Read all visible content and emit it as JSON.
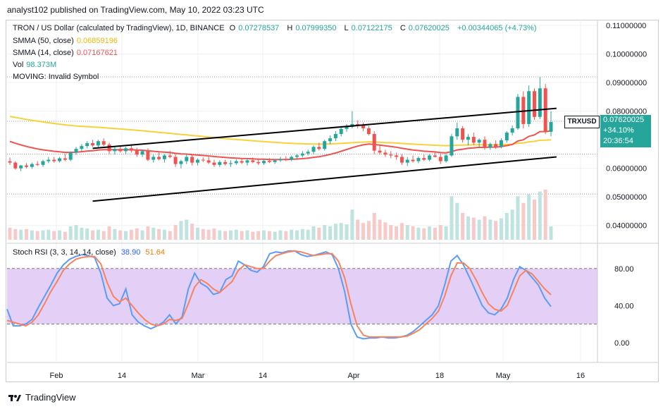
{
  "header": {
    "published": "analyst102 published on TradingView.com, May 10, 2022 03:23 UTC"
  },
  "legend": {
    "symbol": "TRON / US Dollar (calculated by TradingView), 1D, BINANCE",
    "open_label": "O",
    "open": "0.07278537",
    "high_label": "H",
    "high": "0.07999350",
    "low_label": "L",
    "low": "0.07122175",
    "close_label": "C",
    "close": "0.07620025",
    "change": "+0.00344065 (+4.73%)",
    "smma50_label": "SMMA (50, close)",
    "smma50": "0.06859196",
    "smma14_label": "SMMA (14, close)",
    "smma14": "0.07167621",
    "vol_label": "Vol",
    "vol": "98.373M",
    "moving_label": "MOVING: Invalid Symbol"
  },
  "price_tag": {
    "symbol": "TRXUSD",
    "price": "0.07620025",
    "pct": "+34.10%",
    "countdown": "20:36:54"
  },
  "stoch_legend": {
    "label": "Stoch RSI (3, 3, 14, 14, close)",
    "k": "38.90",
    "d": "51.64"
  },
  "footer": {
    "brand": "TradingView"
  },
  "colors": {
    "up": "#26a69a",
    "down": "#ef5350",
    "smma50": "#f7d23a",
    "smma14": "#ef5350",
    "stoch_k": "#5b9cf6",
    "stoch_d": "#f7825e",
    "stoch_band": "#e4d0f7"
  },
  "chart_data": [
    {
      "type": "candlestick",
      "title": "TRON / US Dollar (calculated by TradingView), 1D, BINANCE",
      "x_ticks": [
        "Feb",
        "14",
        "Mar",
        "14",
        "Apr",
        "18",
        "May",
        "16"
      ],
      "y_ticks": [
        "0.11000000",
        "0.10000000",
        "0.09000000",
        "0.08000000",
        "0.06000000",
        "0.05000000",
        "0.04000000"
      ],
      "ylim": [
        0.035,
        0.112
      ],
      "candles": [
        [
          0.0625,
          0.0638,
          0.0612,
          0.062
        ],
        [
          0.062,
          0.0625,
          0.0595,
          0.06
        ],
        [
          0.06,
          0.0612,
          0.059,
          0.061
        ],
        [
          0.061,
          0.0618,
          0.06,
          0.0605
        ],
        [
          0.0605,
          0.062,
          0.0598,
          0.0615
        ],
        [
          0.0615,
          0.0625,
          0.0608,
          0.0612
        ],
        [
          0.0612,
          0.063,
          0.0605,
          0.0625
        ],
        [
          0.0625,
          0.064,
          0.0618,
          0.063
        ],
        [
          0.063,
          0.064,
          0.062,
          0.0625
        ],
        [
          0.0625,
          0.064,
          0.062,
          0.0635
        ],
        [
          0.0635,
          0.065,
          0.0625,
          0.063
        ],
        [
          0.063,
          0.066,
          0.0625,
          0.0655
        ],
        [
          0.0655,
          0.0675,
          0.0648,
          0.0668
        ],
        [
          0.0668,
          0.0685,
          0.066,
          0.0678
        ],
        [
          0.0678,
          0.0695,
          0.067,
          0.0688
        ],
        [
          0.0688,
          0.07,
          0.0675,
          0.068
        ],
        [
          0.068,
          0.07,
          0.067,
          0.0695
        ],
        [
          0.0695,
          0.0705,
          0.0678,
          0.0683
        ],
        [
          0.0683,
          0.069,
          0.065,
          0.066
        ],
        [
          0.066,
          0.0675,
          0.0648,
          0.0668
        ],
        [
          0.0668,
          0.068,
          0.0655,
          0.066
        ],
        [
          0.066,
          0.0675,
          0.065,
          0.067
        ],
        [
          0.067,
          0.0685,
          0.0655,
          0.0662
        ],
        [
          0.0662,
          0.0672,
          0.064,
          0.0648
        ],
        [
          0.0648,
          0.0665,
          0.064,
          0.066
        ],
        [
          0.066,
          0.067,
          0.0625,
          0.063
        ],
        [
          0.063,
          0.0648,
          0.062,
          0.064
        ],
        [
          0.064,
          0.0655,
          0.0628,
          0.0632
        ],
        [
          0.0632,
          0.065,
          0.062,
          0.0645
        ],
        [
          0.0645,
          0.066,
          0.0635,
          0.064
        ],
        [
          0.064,
          0.065,
          0.0605,
          0.0615
        ],
        [
          0.0615,
          0.063,
          0.06,
          0.0625
        ],
        [
          0.0625,
          0.065,
          0.0615,
          0.064
        ],
        [
          0.064,
          0.0648,
          0.061,
          0.062
        ],
        [
          0.062,
          0.0635,
          0.061,
          0.063
        ],
        [
          0.063,
          0.0638,
          0.0622,
          0.0628
        ],
        [
          0.0628,
          0.064,
          0.0615,
          0.062
        ],
        [
          0.062,
          0.063,
          0.0605,
          0.0612
        ],
        [
          0.0612,
          0.0628,
          0.0605,
          0.0622
        ],
        [
          0.0622,
          0.063,
          0.061,
          0.0615
        ],
        [
          0.0615,
          0.0628,
          0.0605,
          0.0618
        ],
        [
          0.0618,
          0.0632,
          0.0612,
          0.0625
        ],
        [
          0.0625,
          0.0635,
          0.0615,
          0.062
        ],
        [
          0.062,
          0.0635,
          0.061,
          0.0628
        ],
        [
          0.0628,
          0.0638,
          0.0618,
          0.0622
        ],
        [
          0.0622,
          0.063,
          0.0612,
          0.0618
        ],
        [
          0.0618,
          0.0632,
          0.0612,
          0.0626
        ],
        [
          0.0626,
          0.0636,
          0.0618,
          0.0622
        ],
        [
          0.0622,
          0.063,
          0.0615,
          0.0628
        ],
        [
          0.0628,
          0.064,
          0.0622,
          0.0632
        ],
        [
          0.0632,
          0.0642,
          0.0625,
          0.063
        ],
        [
          0.063,
          0.0645,
          0.0625,
          0.064
        ],
        [
          0.064,
          0.065,
          0.0632,
          0.0645
        ],
        [
          0.0645,
          0.066,
          0.0638,
          0.0652
        ],
        [
          0.0652,
          0.0665,
          0.0645,
          0.0658
        ],
        [
          0.0658,
          0.068,
          0.065,
          0.0675
        ],
        [
          0.0675,
          0.069,
          0.0662,
          0.0668
        ],
        [
          0.0668,
          0.07,
          0.0662,
          0.0695
        ],
        [
          0.0695,
          0.0715,
          0.0685,
          0.0705
        ],
        [
          0.0705,
          0.073,
          0.0695,
          0.072
        ],
        [
          0.072,
          0.0748,
          0.0712,
          0.0738
        ],
        [
          0.0738,
          0.0755,
          0.0728,
          0.0745
        ],
        [
          0.0745,
          0.08,
          0.074,
          0.0755
        ],
        [
          0.0755,
          0.0768,
          0.074,
          0.075
        ],
        [
          0.075,
          0.076,
          0.073,
          0.074
        ],
        [
          0.074,
          0.0748,
          0.0715,
          0.072
        ],
        [
          0.072,
          0.073,
          0.065,
          0.0662
        ],
        [
          0.0662,
          0.068,
          0.0648,
          0.0655
        ],
        [
          0.0655,
          0.0665,
          0.064,
          0.0648
        ],
        [
          0.0648,
          0.066,
          0.0635,
          0.0645
        ],
        [
          0.0645,
          0.0655,
          0.063,
          0.064
        ],
        [
          0.064,
          0.065,
          0.0612,
          0.062
        ],
        [
          0.062,
          0.064,
          0.0608,
          0.063
        ],
        [
          0.063,
          0.0645,
          0.062,
          0.0625
        ],
        [
          0.0625,
          0.0642,
          0.0618,
          0.0636
        ],
        [
          0.0636,
          0.0648,
          0.0625,
          0.063
        ],
        [
          0.063,
          0.065,
          0.0625,
          0.0645
        ],
        [
          0.0645,
          0.066,
          0.0638,
          0.064
        ],
        [
          0.064,
          0.0652,
          0.0615,
          0.0625
        ],
        [
          0.0625,
          0.065,
          0.062,
          0.0645
        ],
        [
          0.0645,
          0.072,
          0.064,
          0.0712
        ],
        [
          0.0712,
          0.076,
          0.07,
          0.074
        ],
        [
          0.074,
          0.0748,
          0.069,
          0.07
        ],
        [
          0.07,
          0.072,
          0.068,
          0.071
        ],
        [
          0.071,
          0.0725,
          0.0682,
          0.069
        ],
        [
          0.069,
          0.0705,
          0.067,
          0.07
        ],
        [
          0.07,
          0.0712,
          0.0665,
          0.0672
        ],
        [
          0.0672,
          0.069,
          0.0665,
          0.0685
        ],
        [
          0.0685,
          0.0698,
          0.0668,
          0.0675
        ],
        [
          0.0675,
          0.0705,
          0.067,
          0.0698
        ],
        [
          0.0698,
          0.073,
          0.069,
          0.0725
        ],
        [
          0.0725,
          0.075,
          0.0715,
          0.074
        ],
        [
          0.074,
          0.086,
          0.0735,
          0.085
        ],
        [
          0.085,
          0.087,
          0.074,
          0.0755
        ],
        [
          0.0755,
          0.089,
          0.0745,
          0.087
        ],
        [
          0.087,
          0.088,
          0.077,
          0.078
        ],
        [
          0.078,
          0.092,
          0.0772,
          0.088
        ],
        [
          0.088,
          0.0895,
          0.072,
          0.0728
        ],
        [
          0.07278537,
          0.0799935,
          0.07122175,
          0.07620025
        ]
      ],
      "smma50": {
        "start": 0.0785,
        "end": 0.06859196
      },
      "smma14": {
        "start": 0.07,
        "end": 0.07167621
      },
      "trend_lines": [
        {
          "from": [
            15,
            0.067
          ],
          "to": [
            99,
            0.081
          ]
        },
        {
          "from": [
            15,
            0.0485
          ],
          "to": [
            99,
            0.064
          ]
        }
      ],
      "volume_relative": [
        0.18,
        0.16,
        0.15,
        0.16,
        0.14,
        0.13,
        0.14,
        0.15,
        0.13,
        0.14,
        0.12,
        0.2,
        0.22,
        0.18,
        0.17,
        0.14,
        0.15,
        0.13,
        0.2,
        0.16,
        0.14,
        0.13,
        0.15,
        0.17,
        0.14,
        0.2,
        0.18,
        0.16,
        0.15,
        0.13,
        0.22,
        0.28,
        0.3,
        0.24,
        0.18,
        0.16,
        0.15,
        0.17,
        0.14,
        0.13,
        0.14,
        0.15,
        0.13,
        0.14,
        0.12,
        0.13,
        0.14,
        0.13,
        0.12,
        0.14,
        0.13,
        0.15,
        0.14,
        0.16,
        0.15,
        0.2,
        0.18,
        0.22,
        0.2,
        0.24,
        0.25,
        0.23,
        0.45,
        0.3,
        0.25,
        0.28,
        0.4,
        0.3,
        0.26,
        0.22,
        0.2,
        0.25,
        0.22,
        0.2,
        0.18,
        0.17,
        0.2,
        0.18,
        0.22,
        0.2,
        0.65,
        0.55,
        0.4,
        0.35,
        0.33,
        0.3,
        0.35,
        0.3,
        0.28,
        0.32,
        0.4,
        0.45,
        0.65,
        0.55,
        0.68,
        0.6,
        0.72,
        0.75,
        0.2
      ]
    },
    {
      "type": "line",
      "title": "Stoch RSI (3, 3, 14, 14, close)",
      "y_ticks": [
        "80.00",
        "40.00",
        "0.00"
      ],
      "ylim": [
        -20,
        105
      ],
      "band": [
        20,
        80
      ],
      "series": [
        {
          "name": "K",
          "values": [
            36,
            18,
            18,
            20,
            25,
            38,
            50,
            62,
            75,
            84,
            90,
            93,
            95,
            94,
            92,
            75,
            48,
            40,
            42,
            58,
            30,
            22,
            18,
            15,
            18,
            22,
            30,
            20,
            28,
            58,
            75,
            64,
            60,
            52,
            54,
            68,
            72,
            88,
            84,
            78,
            76,
            82,
            96,
            98,
            97,
            99,
            99,
            95,
            93,
            94,
            96,
            98,
            95,
            80,
            55,
            20,
            6,
            4,
            5,
            5,
            6,
            5,
            5,
            6,
            8,
            12,
            18,
            24,
            30,
            40,
            62,
            88,
            94,
            84,
            70,
            55,
            40,
            32,
            30,
            36,
            48,
            68,
            82,
            78,
            70,
            62,
            48,
            38.9
          ]
        },
        {
          "name": "D",
          "values": [
            24,
            22,
            20,
            18,
            22,
            30,
            42,
            55,
            66,
            78,
            85,
            90,
            92,
            93,
            93,
            85,
            65,
            50,
            44,
            48,
            40,
            32,
            25,
            20,
            18,
            20,
            25,
            24,
            26,
            42,
            60,
            68,
            64,
            58,
            54,
            60,
            66,
            78,
            84,
            82,
            80,
            80,
            88,
            94,
            96,
            98,
            99,
            98,
            96,
            94,
            95,
            96,
            96,
            88,
            70,
            42,
            18,
            8,
            6,
            6,
            6,
            6,
            6,
            6,
            7,
            10,
            14,
            20,
            26,
            34,
            50,
            72,
            86,
            86,
            80,
            68,
            54,
            42,
            36,
            34,
            40,
            56,
            72,
            78,
            74,
            66,
            58,
            51.64
          ]
        }
      ]
    }
  ]
}
